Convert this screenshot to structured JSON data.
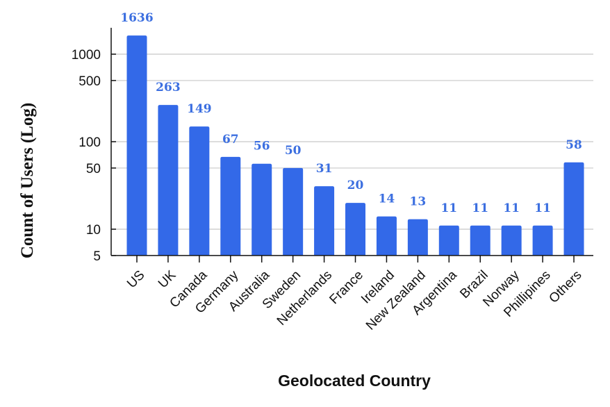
{
  "chart_data": {
    "type": "bar",
    "title": "",
    "xlabel": "Geolocated Country",
    "ylabel": "Count of Users (Log)",
    "y_scale": "log",
    "ylim": [
      5,
      2000
    ],
    "yticks": [
      5,
      10,
      50,
      100,
      500,
      1000
    ],
    "ytick_labels": [
      "5",
      "10",
      "50",
      "100",
      "500",
      "1000"
    ],
    "grid": true,
    "categories": [
      "US",
      "UK",
      "Canada",
      "Germany",
      "Australia",
      "Sweden",
      "Netherlands",
      "France",
      "Ireland",
      "New Zealand",
      "Argentina",
      "Brazil",
      "Norway",
      "Phillipines",
      "Others"
    ],
    "values": [
      1636,
      263,
      149,
      67,
      56,
      50,
      31,
      20,
      14,
      13,
      11,
      11,
      11,
      11,
      58
    ],
    "value_labels": [
      "1636",
      "263",
      "149",
      "67",
      "56",
      "50",
      "31",
      "20",
      "14",
      "13",
      "11",
      "11",
      "11",
      "11",
      "58"
    ],
    "bar_color": "#3369e8",
    "label_color": "#3c6fe0",
    "grid_color": "#c8c8c8"
  }
}
